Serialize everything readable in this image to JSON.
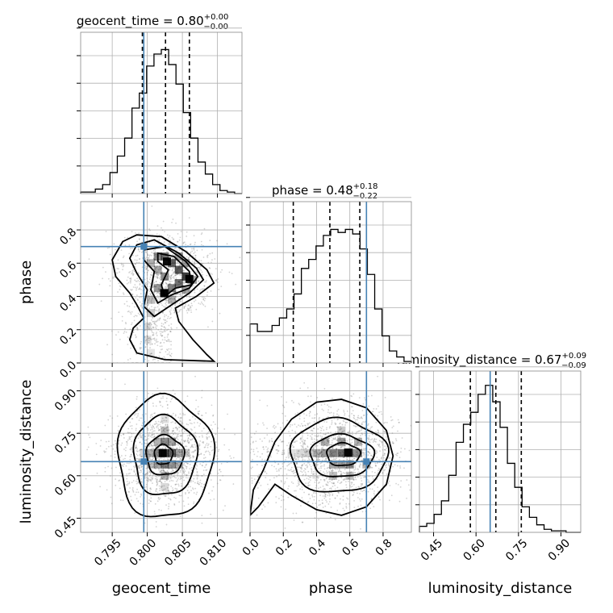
{
  "chart_data": {
    "type": "corner",
    "parameters": [
      "geocent_time",
      "phase",
      "luminosity_distance"
    ],
    "axis_labels": [
      "geocent_time",
      "phase",
      "luminosity_distance"
    ],
    "ranges": [
      [
        0.7905,
        0.8135
      ],
      [
        0.0,
        0.97
      ],
      [
        0.4,
        0.97
      ]
    ],
    "ticks": [
      [
        {
          "v": 0.795,
          "label": "0.795"
        },
        {
          "v": 0.8,
          "label": "0.800"
        },
        {
          "v": 0.805,
          "label": "0.805"
        },
        {
          "v": 0.81,
          "label": "0.810"
        }
      ],
      [
        {
          "v": 0.0,
          "label": "0.0"
        },
        {
          "v": 0.2,
          "label": "0.2"
        },
        {
          "v": 0.4,
          "label": "0.4"
        },
        {
          "v": 0.6,
          "label": "0.6"
        },
        {
          "v": 0.8,
          "label": "0.8"
        }
      ],
      [
        {
          "v": 0.45,
          "label": "0.45"
        },
        {
          "v": 0.6,
          "label": "0.60"
        },
        {
          "v": 0.75,
          "label": "0.75"
        },
        {
          "v": 0.9,
          "label": "0.90"
        }
      ]
    ],
    "injection": {
      "geocent_time": 0.7995,
      "phase": 0.7,
      "luminosity_distance": 0.65
    },
    "truth_color": "#4682b4",
    "summaries": [
      {
        "name": "geocent_time",
        "median": "0.80",
        "plus": "+0.00",
        "minus": "−0.00",
        "quantiles": [
          0.7993,
          0.8026,
          0.806
        ]
      },
      {
        "name": "phase",
        "median": "0.48",
        "plus": "+0.18",
        "minus": "−0.22",
        "quantiles": [
          0.26,
          0.48,
          0.66
        ]
      },
      {
        "name": "luminosity_distance",
        "median": "0.67",
        "plus": "+0.09",
        "minus": "−0.09",
        "quantiles": [
          0.58,
          0.67,
          0.76
        ]
      }
    ],
    "histograms": [
      [
        0.01,
        0.01,
        0.03,
        0.06,
        0.14,
        0.25,
        0.37,
        0.57,
        0.67,
        0.85,
        0.93,
        0.96,
        0.86,
        0.73,
        0.54,
        0.37,
        0.21,
        0.13,
        0.06,
        0.02,
        0.01,
        0.0
      ],
      [
        0.26,
        0.21,
        0.21,
        0.25,
        0.3,
        0.36,
        0.46,
        0.63,
        0.69,
        0.78,
        0.85,
        0.89,
        0.87,
        0.89,
        0.86,
        0.76,
        0.59,
        0.36,
        0.18,
        0.08,
        0.04,
        0.01
      ],
      [
        0.04,
        0.06,
        0.12,
        0.21,
        0.38,
        0.6,
        0.72,
        0.8,
        0.92,
        0.98,
        0.87,
        0.7,
        0.46,
        0.3,
        0.17,
        0.1,
        0.05,
        0.02,
        0.01,
        0.01,
        0.0,
        0.0
      ]
    ],
    "grid": true
  }
}
